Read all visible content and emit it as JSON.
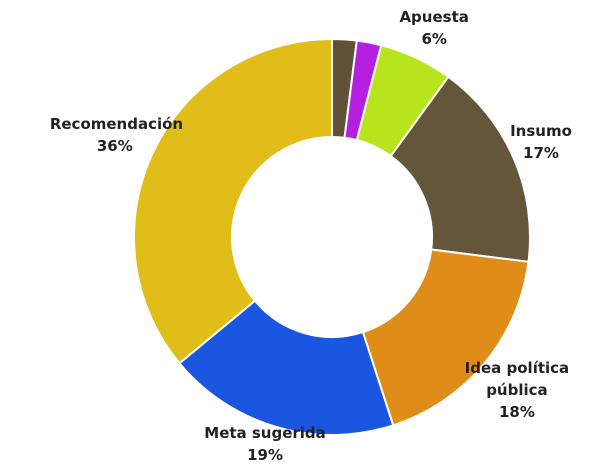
{
  "chart_data": {
    "type": "donut",
    "categories": [
      null,
      null,
      "Apuesta",
      "Insumo",
      "Idea política pública",
      "Meta sugerida",
      "Recomendación"
    ],
    "values": [
      2,
      2,
      6,
      17,
      18,
      19,
      36
    ],
    "value_labels": [
      null,
      null,
      "6%",
      "17%",
      "18%",
      "19%",
      "36%"
    ],
    "colors": [
      "#5f5238",
      "#b71fe0",
      "#b8e41e",
      "#63563a",
      "#e08c18",
      "#1a56e0",
      "#e0bd18"
    ]
  }
}
